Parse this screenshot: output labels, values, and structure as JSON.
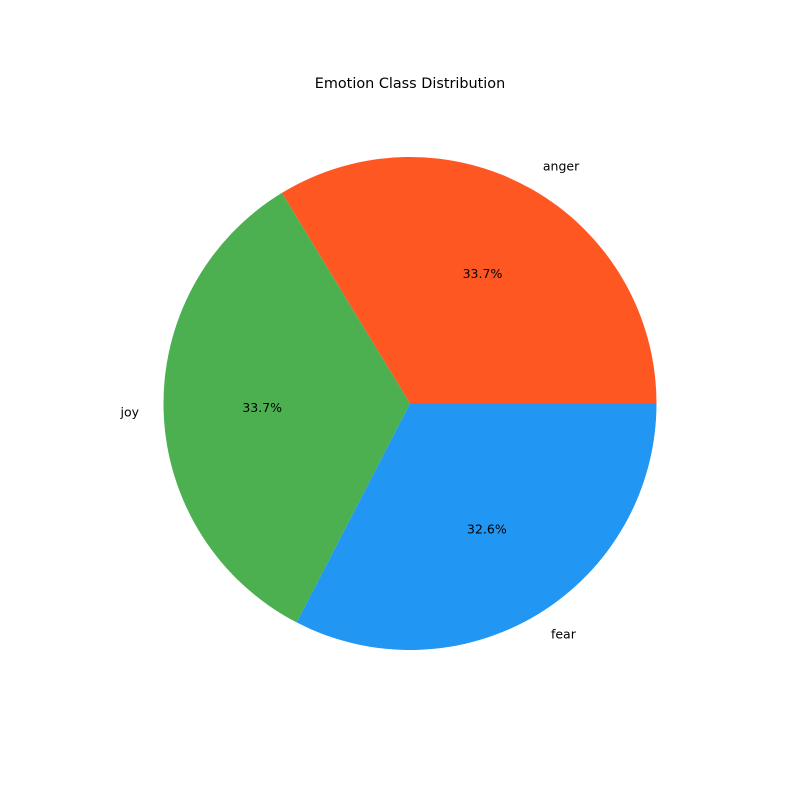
{
  "chart_data": {
    "type": "pie",
    "title": "Emotion Class Distribution",
    "slices": [
      {
        "label": "anger",
        "percent_label": "33.7%",
        "value": 33.7,
        "color": "#FF5722"
      },
      {
        "label": "joy",
        "percent_label": "33.7%",
        "value": 33.7,
        "color": "#4CAF50"
      },
      {
        "label": "fear",
        "percent_label": "32.6%",
        "value": 32.6,
        "color": "#2196F3"
      }
    ],
    "start_angle_deg": 0,
    "direction": "counterclockwise",
    "legend": "none"
  }
}
